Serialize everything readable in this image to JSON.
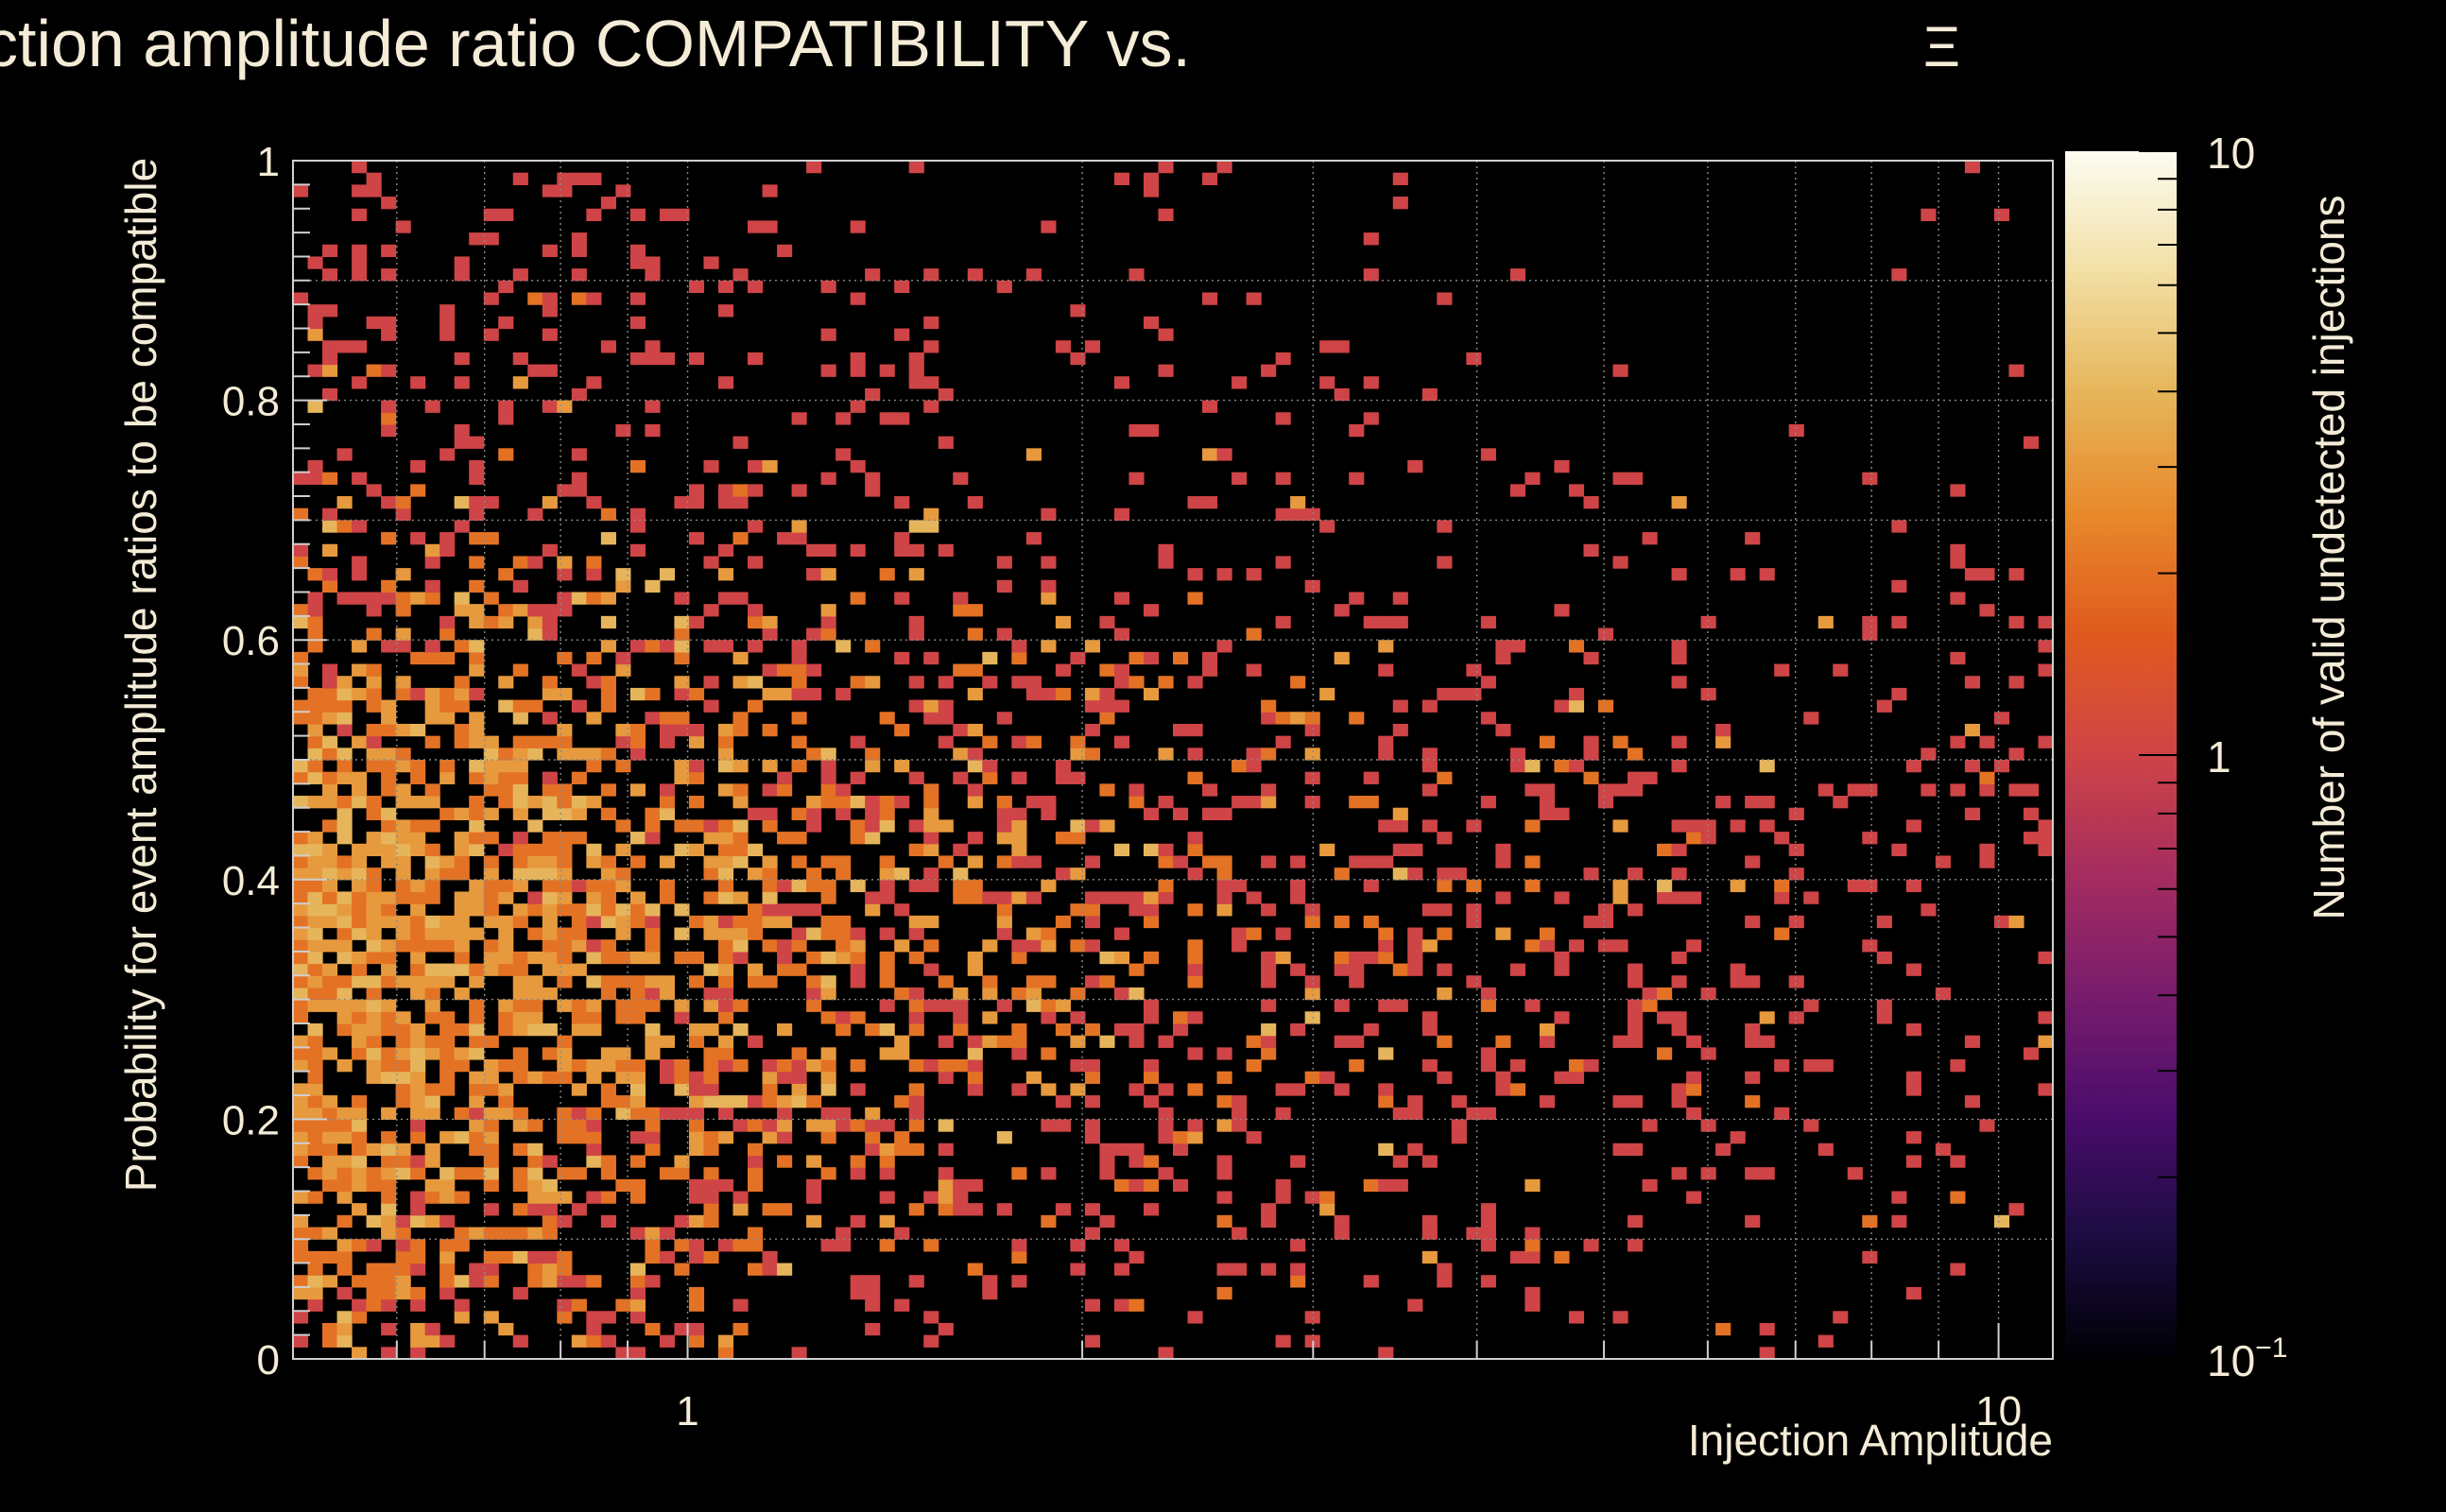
{
  "chart_data": {
    "type": "heatmap",
    "title": "Injection amplitude ratio COMPATIBILITY vs.",
    "title_symbol": "Ξ",
    "xlabel": "Injection Amplitude",
    "ylabel": "Probability for event amplitude ratios to be compatible",
    "zlabel": "Number of valid undetected injections",
    "x_scale": "log",
    "xlim": [
      0.5,
      11
    ],
    "ylim": [
      0,
      1
    ],
    "z_scale": "log",
    "zlim": [
      0.1,
      10
    ],
    "x_ticks": [
      {
        "value": 1,
        "label": "1"
      },
      {
        "value": 10,
        "label": "10"
      }
    ],
    "y_ticks": [
      {
        "value": 0,
        "label": "0"
      },
      {
        "value": 0.2,
        "label": "0.2"
      },
      {
        "value": 0.4,
        "label": "0.4"
      },
      {
        "value": 0.6,
        "label": "0.6"
      },
      {
        "value": 0.8,
        "label": "0.8"
      },
      {
        "value": 1,
        "label": "1"
      }
    ],
    "z_ticks": [
      {
        "value": 10,
        "label": "10"
      },
      {
        "value": 1,
        "label": "1"
      },
      {
        "value": 0.1,
        "label": "10",
        "exp": "−1"
      }
    ],
    "bins": {
      "nx": 120,
      "ny": 100
    },
    "colormap": [
      "#000004",
      "#1b0c41",
      "#4a0c6b",
      "#781c6d",
      "#a52c60",
      "#cf4446",
      "#e05a1e",
      "#e8892b",
      "#e6b55a",
      "#f2dfa4",
      "#fcfcf2"
    ],
    "density_model": "counts are high at low amplitude (0.5–2) with probability 0.15–0.55, falling off toward large amplitude; mostly 1–3 counts per bin, max ~4",
    "colors": {
      "background": "#000000",
      "text": "#f5ecd7",
      "grid": "#8a8a8a",
      "frame": "#ffffff"
    }
  }
}
